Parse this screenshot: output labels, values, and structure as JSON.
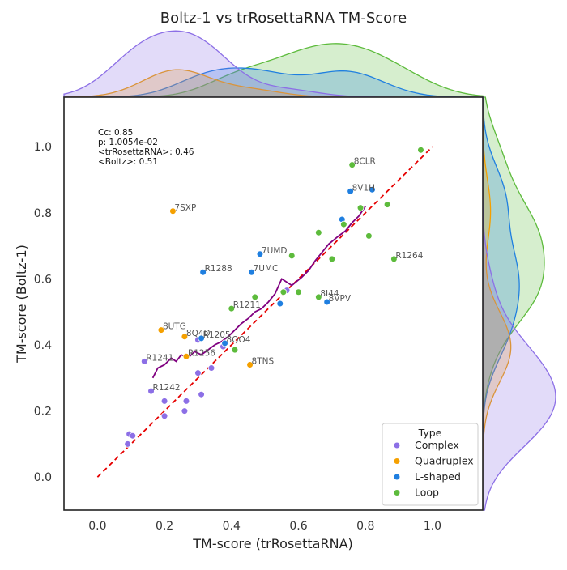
{
  "chart_data": {
    "type": "scatter",
    "title": "Boltz-1 vs trRosettaRNA TM-Score",
    "xlabel": "TM-score (trRosettaRNA)",
    "ylabel": "TM-score (Boltz-1)",
    "xlim": [
      -0.1,
      1.15
    ],
    "ylim": [
      -0.1,
      1.15
    ],
    "x_ticks": [
      "0.0",
      "0.2",
      "0.4",
      "0.6",
      "0.8",
      "1.0"
    ],
    "y_ticks": [
      "0.0",
      "0.2",
      "0.4",
      "0.6",
      "0.8",
      "1.0"
    ],
    "grid": false,
    "stats": [
      "Cc: 0.85",
      "p: 1.0054e-02",
      "<trRosettaRNA>: 0.46",
      "<Boltz>: 0.51"
    ],
    "legend": {
      "title": "Type",
      "placement": "lower-right",
      "entries": [
        "Complex",
        "Quadruplex",
        "L-shaped",
        "Loop"
      ]
    },
    "colors": {
      "Complex": "#8c6fe6",
      "Quadruplex": "#f5a000",
      "L-shaped": "#1f7fe0",
      "Loop": "#5dbb3c",
      "diagonal": "#e60000",
      "trend": "#800080"
    },
    "series": [
      {
        "name": "Complex",
        "points": [
          {
            "x": 0.09,
            "y": 0.1
          },
          {
            "x": 0.095,
            "y": 0.13
          },
          {
            "x": 0.105,
            "y": 0.125
          },
          {
            "x": 0.16,
            "y": 0.26,
            "label": "R1242"
          },
          {
            "x": 0.2,
            "y": 0.185
          },
          {
            "x": 0.2,
            "y": 0.23
          },
          {
            "x": 0.26,
            "y": 0.2
          },
          {
            "x": 0.265,
            "y": 0.23
          },
          {
            "x": 0.3,
            "y": 0.315
          },
          {
            "x": 0.31,
            "y": 0.25
          },
          {
            "x": 0.34,
            "y": 0.33
          },
          {
            "x": 0.14,
            "y": 0.35,
            "label": "R1241"
          },
          {
            "x": 0.3,
            "y": 0.415
          },
          {
            "x": 0.375,
            "y": 0.395
          },
          {
            "x": 0.565,
            "y": 0.565
          }
        ]
      },
      {
        "name": "Quadruplex",
        "points": [
          {
            "x": 0.225,
            "y": 0.805,
            "label": "7SXP"
          },
          {
            "x": 0.19,
            "y": 0.445,
            "label": "8UTG"
          },
          {
            "x": 0.26,
            "y": 0.425,
            "label": "8Q4D"
          },
          {
            "x": 0.265,
            "y": 0.365,
            "label": "R1256"
          },
          {
            "x": 0.455,
            "y": 0.34,
            "label": "8TNS"
          }
        ]
      },
      {
        "name": "L-shaped",
        "points": [
          {
            "x": 0.315,
            "y": 0.62,
            "label": "R1288"
          },
          {
            "x": 0.46,
            "y": 0.62,
            "label": "7UMC"
          },
          {
            "x": 0.485,
            "y": 0.675,
            "label": "7UMD"
          },
          {
            "x": 0.545,
            "y": 0.525
          },
          {
            "x": 0.685,
            "y": 0.53,
            "label": "8VPV"
          },
          {
            "x": 0.73,
            "y": 0.78
          },
          {
            "x": 0.755,
            "y": 0.865,
            "label": "8V1H"
          },
          {
            "x": 0.82,
            "y": 0.87
          },
          {
            "x": 0.31,
            "y": 0.42,
            "label": "R1205"
          },
          {
            "x": 0.38,
            "y": 0.405,
            "label": "8QO4"
          }
        ]
      },
      {
        "name": "Loop",
        "points": [
          {
            "x": 0.965,
            "y": 0.99
          },
          {
            "x": 0.76,
            "y": 0.945,
            "label": "8CLR"
          },
          {
            "x": 0.785,
            "y": 0.815
          },
          {
            "x": 0.865,
            "y": 0.825
          },
          {
            "x": 0.735,
            "y": 0.765
          },
          {
            "x": 0.66,
            "y": 0.74
          },
          {
            "x": 0.81,
            "y": 0.73
          },
          {
            "x": 0.58,
            "y": 0.67
          },
          {
            "x": 0.7,
            "y": 0.66
          },
          {
            "x": 0.885,
            "y": 0.66,
            "label": "R1264"
          },
          {
            "x": 0.6,
            "y": 0.56
          },
          {
            "x": 0.555,
            "y": 0.56
          },
          {
            "x": 0.47,
            "y": 0.545
          },
          {
            "x": 0.66,
            "y": 0.545,
            "label": "8I44"
          },
          {
            "x": 0.41,
            "y": 0.385
          },
          {
            "x": 0.4,
            "y": 0.51,
            "label": "R1211"
          }
        ]
      }
    ],
    "trend_line": {
      "x": [
        0.165,
        0.18,
        0.2,
        0.22,
        0.235,
        0.25,
        0.27,
        0.29,
        0.31,
        0.33,
        0.35,
        0.37,
        0.39,
        0.41,
        0.43,
        0.45,
        0.47,
        0.49,
        0.51,
        0.53,
        0.55,
        0.58,
        0.61,
        0.63,
        0.65,
        0.67,
        0.69,
        0.72,
        0.74,
        0.76,
        0.78,
        0.8
      ],
      "y": [
        0.3,
        0.33,
        0.34,
        0.36,
        0.35,
        0.37,
        0.36,
        0.38,
        0.37,
        0.385,
        0.4,
        0.41,
        0.425,
        0.445,
        0.465,
        0.48,
        0.5,
        0.51,
        0.53,
        0.555,
        0.6,
        0.58,
        0.605,
        0.625,
        0.655,
        0.68,
        0.705,
        0.73,
        0.745,
        0.77,
        0.79,
        0.82
      ]
    },
    "diagonal": {
      "x": [
        0.0,
        1.0
      ],
      "y": [
        0.0,
        1.0
      ]
    }
  }
}
